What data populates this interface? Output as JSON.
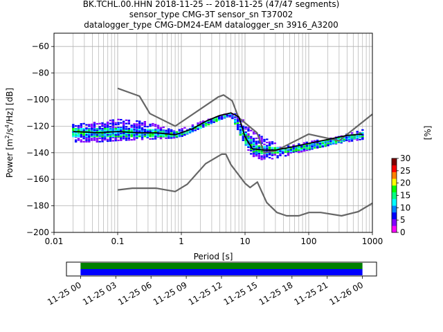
{
  "chart_data": [
    {
      "type": "heatmap",
      "title_lines": [
        "BK.TCHL.00.HHN   2018-11-25 -- 2018-11-25  (47/47 segments)",
        "sensor_type CMG-3T sensor_sn T37002",
        "datalogger_type CMG-DM24-EAM datalogger_sn 3916_A3200"
      ],
      "xlabel": "Period [s]",
      "ylabel_parts": {
        "pre": "Power [m",
        "sup1": "2",
        "mid": "/s",
        "sup2": "4",
        "post": "/Hz] [dB]"
      },
      "xscale": "log",
      "xlim": [
        0.01,
        1000
      ],
      "ylim": [
        -200,
        -50
      ],
      "xticks": [
        {
          "value": 0.01,
          "label": "0.01"
        },
        {
          "value": 0.1,
          "label": "0.1"
        },
        {
          "value": 1,
          "label": "1"
        },
        {
          "value": 10,
          "label": "10"
        },
        {
          "value": 100,
          "label": "100"
        },
        {
          "value": 1000,
          "label": "1000"
        }
      ],
      "yticks": [
        {
          "value": -60,
          "label": "−60"
        },
        {
          "value": -80,
          "label": "−80"
        },
        {
          "value": -100,
          "label": "−100"
        },
        {
          "value": -120,
          "label": "−120"
        },
        {
          "value": -140,
          "label": "−140"
        },
        {
          "value": -160,
          "label": "−160"
        },
        {
          "value": -180,
          "label": "−180"
        },
        {
          "value": -200,
          "label": "−200"
        }
      ],
      "grid": true,
      "colorbar": {
        "label": "[%]",
        "range": [
          0,
          30
        ],
        "ticks": [
          {
            "value": 0,
            "label": "0"
          },
          {
            "value": 5,
            "label": "5"
          },
          {
            "value": 10,
            "label": "10"
          },
          {
            "value": 15,
            "label": "15"
          },
          {
            "value": 20,
            "label": "20"
          },
          {
            "value": 25,
            "label": "25"
          },
          {
            "value": 30,
            "label": "30"
          }
        ],
        "colors": [
          "#ffffff",
          "#ff00ff",
          "#8000ff",
          "#0000ff",
          "#0080ff",
          "#00ffff",
          "#00ff80",
          "#00ff00",
          "#ffff00",
          "#ff8000",
          "#ff0000",
          "#800000"
        ]
      },
      "series": [
        {
          "role": "high-noise-model",
          "color": "#666666",
          "points": [
            [
              0.1,
              -91.5
            ],
            [
              0.22,
              -97.4
            ],
            [
              0.32,
              -110.5
            ],
            [
              0.8,
              -120
            ],
            [
              3.8,
              -98
            ],
            [
              4.6,
              -96.5
            ],
            [
              6.3,
              -101
            ],
            [
              7.9,
              -113.5
            ],
            [
              15.4,
              -125
            ],
            [
              20,
              -140
            ],
            [
              30,
              -138.7
            ],
            [
              100,
              -126
            ],
            [
              300,
              -131
            ],
            [
              1000,
              -111
            ]
          ]
        },
        {
          "role": "low-noise-model",
          "color": "#666666",
          "points": [
            [
              0.1,
              -168
            ],
            [
              0.17,
              -166.7
            ],
            [
              0.4,
              -166.7
            ],
            [
              0.8,
              -169.2
            ],
            [
              1.24,
              -163.7
            ],
            [
              2.4,
              -148.3
            ],
            [
              4.3,
              -141.1
            ],
            [
              5.0,
              -141.1
            ],
            [
              6.0,
              -149
            ],
            [
              10,
              -163
            ],
            [
              12,
              -166.2
            ],
            [
              15.6,
              -162.1
            ],
            [
              21.9,
              -177.5
            ],
            [
              31.6,
              -185
            ],
            [
              45,
              -187.5
            ],
            [
              70,
              -187.5
            ],
            [
              101,
              -185
            ],
            [
              154,
              -185
            ],
            [
              328,
              -187.5
            ],
            [
              600,
              -184.4
            ],
            [
              1000,
              -178
            ]
          ]
        },
        {
          "role": "mean",
          "color": "#000000",
          "points": [
            [
              0.02,
              -124
            ],
            [
              0.05,
              -125
            ],
            [
              0.1,
              -124
            ],
            [
              0.2,
              -125
            ],
            [
              0.4,
              -125
            ],
            [
              0.8,
              -126.5
            ],
            [
              1.5,
              -122
            ],
            [
              2.5,
              -116
            ],
            [
              4,
              -112
            ],
            [
              6,
              -110
            ],
            [
              8,
              -113
            ],
            [
              10,
              -128
            ],
            [
              13,
              -137
            ],
            [
              20,
              -138
            ],
            [
              30,
              -138
            ],
            [
              50,
              -136
            ],
            [
              100,
              -133
            ],
            [
              200,
              -130
            ],
            [
              400,
              -127
            ],
            [
              700,
              -126
            ]
          ]
        }
      ],
      "density_bands": [
        {
          "level": 5,
          "points": [
            [
              0.02,
              -118
            ],
            [
              0.05,
              -116
            ],
            [
              0.1,
              -114
            ],
            [
              0.3,
              -116
            ],
            [
              0.8,
              -123
            ],
            [
              2,
              -116
            ],
            [
              5,
              -110
            ],
            [
              8,
              -110
            ],
            [
              12,
              -122
            ],
            [
              20,
              -128
            ],
            [
              40,
              -135
            ],
            [
              100,
              -131
            ],
            [
              300,
              -127
            ],
            [
              700,
              -122
            ]
          ],
          "lower": [
            [
              0.02,
              -132
            ],
            [
              0.05,
              -132
            ],
            [
              0.1,
              -131
            ],
            [
              0.3,
              -130
            ],
            [
              0.8,
              -129
            ],
            [
              2,
              -121
            ],
            [
              5,
              -113
            ],
            [
              8,
              -117
            ],
            [
              12,
              -142
            ],
            [
              20,
              -146
            ],
            [
              40,
              -143
            ],
            [
              100,
              -138
            ],
            [
              300,
              -133
            ],
            [
              700,
              -130
            ]
          ]
        },
        {
          "level": 12,
          "points": [
            [
              0.02,
              -121
            ],
            [
              0.1,
              -121
            ],
            [
              0.5,
              -122
            ],
            [
              1,
              -124
            ],
            [
              3,
              -114
            ],
            [
              6,
              -110
            ],
            [
              10,
              -124
            ],
            [
              15,
              -134
            ],
            [
              40,
              -136
            ],
            [
              150,
              -131
            ],
            [
              700,
              -124
            ]
          ],
          "lower": [
            [
              0.02,
              -128
            ],
            [
              0.1,
              -128
            ],
            [
              0.5,
              -128
            ],
            [
              1,
              -128
            ],
            [
              3,
              -118
            ],
            [
              6,
              -112
            ],
            [
              10,
              -134
            ],
            [
              15,
              -141
            ],
            [
              40,
              -140
            ],
            [
              150,
              -136
            ],
            [
              700,
              -128
            ]
          ]
        }
      ]
    },
    {
      "type": "timeline",
      "xticks": [
        {
          "value": 0,
          "label": "11-25 00"
        },
        {
          "value": 3,
          "label": "11-25 03"
        },
        {
          "value": 6,
          "label": "11-25 06"
        },
        {
          "value": 9,
          "label": "11-25 09"
        },
        {
          "value": 12,
          "label": "11-25 12"
        },
        {
          "value": 15,
          "label": "11-25 15"
        },
        {
          "value": 18,
          "label": "11-25 18"
        },
        {
          "value": 21,
          "label": "11-25 21"
        },
        {
          "value": 24,
          "label": "11-26 00"
        }
      ],
      "xlim_hours": [
        -1.2,
        25.2
      ],
      "bars": [
        {
          "color": "#008000",
          "from": 0,
          "to": 24
        },
        {
          "color": "#0000ff",
          "from": 0,
          "to": 24
        }
      ]
    }
  ]
}
